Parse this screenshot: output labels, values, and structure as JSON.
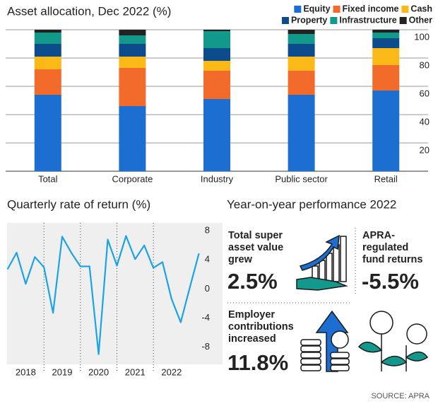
{
  "chart_data": [
    {
      "type": "stacked-bar",
      "title": "Asset allocation, Dec 2022 (%)",
      "categories": [
        "Total",
        "Corporate",
        "Industry",
        "Public sector",
        "Retail"
      ],
      "series": [
        {
          "name": "Equity",
          "color": "#1c6fd1",
          "values": [
            54,
            46,
            51,
            54,
            57
          ]
        },
        {
          "name": "Fixed income",
          "color": "#f26b2a",
          "values": [
            18,
            27,
            20,
            17,
            18
          ]
        },
        {
          "name": "Cash",
          "color": "#fbb917",
          "values": [
            9,
            8,
            7,
            10,
            12
          ]
        },
        {
          "name": "Property",
          "color": "#0d4c8c",
          "values": [
            9,
            9,
            9,
            9,
            7
          ]
        },
        {
          "name": "Infrastructure",
          "color": "#13998c",
          "values": [
            8,
            6,
            12,
            7,
            4
          ]
        },
        {
          "name": "Other",
          "color": "#222222",
          "values": [
            2,
            4,
            1,
            3,
            2
          ]
        }
      ],
      "ylim": [
        0,
        100
      ],
      "yticks": [
        20,
        40,
        60,
        80,
        100
      ],
      "grid": true,
      "legend": "top-right"
    },
    {
      "type": "line",
      "title": "Quarterly rate of return (%)",
      "x": [
        2018,
        2018.25,
        2018.5,
        2018.75,
        2019,
        2019.25,
        2019.5,
        2019.75,
        2020,
        2020.25,
        2020.5,
        2020.75,
        2021,
        2021.25,
        2021.5,
        2021.75,
        2022,
        2022.25,
        2022.5,
        2022.75,
        2023,
        2023.25
      ],
      "values": [
        2.7,
        5.0,
        0.7,
        4.4,
        3.0,
        -3.3,
        7.2,
        5.0,
        3.1,
        3.1,
        -9.0,
        6.8,
        3.2,
        7.3,
        4.1,
        6.0,
        2.9,
        3.7,
        -1.4,
        -4.6,
        0.2,
        4.9
      ],
      "color": "#1ba3e8",
      "xlim": [
        2017.95,
        2023.8
      ],
      "xticks": [
        {
          "value": 2018.5,
          "label": "2018"
        },
        {
          "value": 2019.5,
          "label": "2019"
        },
        {
          "value": 2020.5,
          "label": "2020"
        },
        {
          "value": 2021.5,
          "label": "2021"
        },
        {
          "value": 2022.5,
          "label": "2022"
        }
      ],
      "ylim": [
        -10.4,
        9.1
      ],
      "yticks": [
        8,
        4,
        0,
        -4,
        -8
      ],
      "grid": false
    }
  ],
  "panel": {
    "title": "Year-on-year performance 2022",
    "items": [
      {
        "lines": [
          "Total super",
          "asset value",
          "grew"
        ],
        "value": "2.5%"
      },
      {
        "lines": [
          "APRA-",
          "regulated",
          "fund returns"
        ],
        "value": "-5.5%"
      },
      {
        "lines": [
          "Employer",
          "contributions",
          "increased"
        ],
        "value": "11.8%"
      }
    ]
  },
  "source": "SOURCE: APRA"
}
